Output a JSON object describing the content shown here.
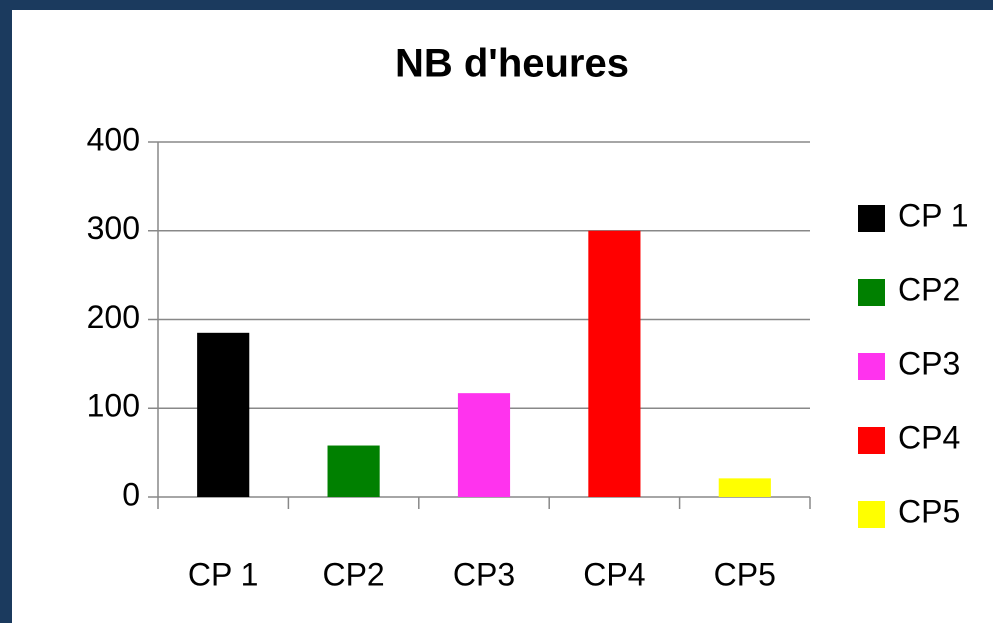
{
  "chart_data": {
    "type": "bar",
    "title": "NB d'heures",
    "categories": [
      "CP 1",
      "CP2",
      "CP3",
      "CP4",
      "CP5"
    ],
    "values": [
      185,
      58,
      117,
      300,
      21
    ],
    "colors": [
      "#000000",
      "#008000",
      "#ff33ee",
      "#ff0000",
      "#ffff00"
    ],
    "ylim": [
      0,
      400
    ],
    "yticks": [
      0,
      100,
      200,
      300,
      400
    ],
    "grid": true,
    "legend": "right"
  }
}
